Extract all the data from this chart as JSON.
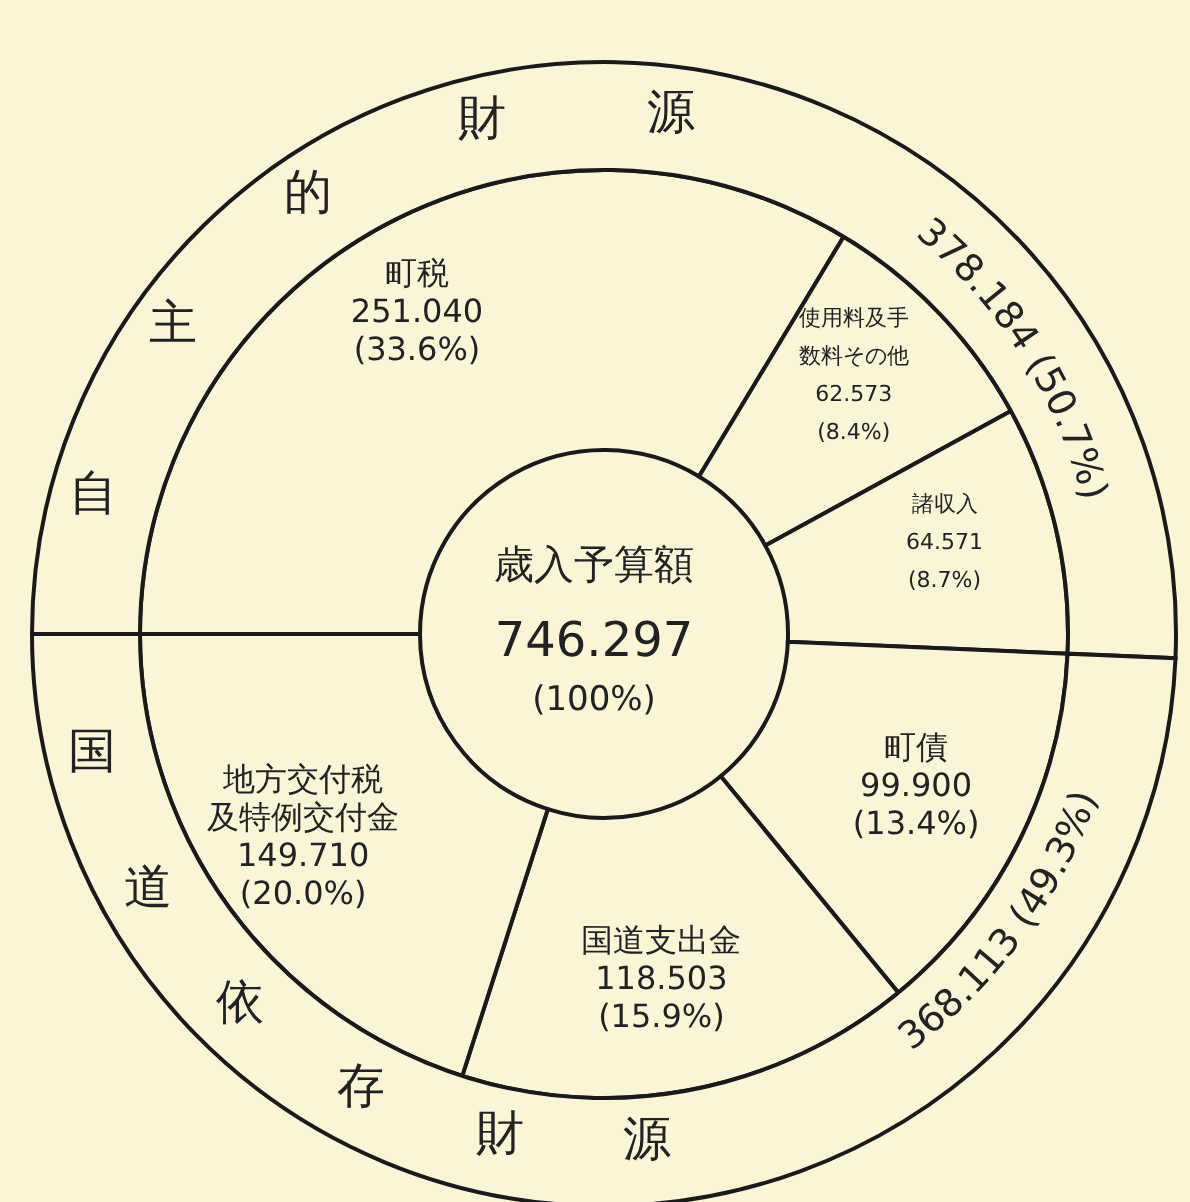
{
  "chart_data": [
    {
      "type": "donut",
      "title": "歳入予算額",
      "annotations": [
        "746.297",
        "(100%)"
      ],
      "categories": [
        "町税",
        "使用料及手数料その他",
        "諸収入",
        "町債",
        "国道支出金",
        "地方交付税及特例交付金"
      ],
      "values": [
        251.04,
        62.573,
        64.571,
        99.9,
        118.503,
        149.71
      ],
      "value_labels": [
        "251.040 (33.6%)",
        "62.573 (8.4%)",
        "64.571 (8.7%)",
        "99.900 (13.4%)",
        "118.503 (15.9%)",
        "149.710 (20.0%)"
      ],
      "colors": [
        "#fbf5d8",
        "#fbf5d8",
        "#fbf5d8",
        "#fbf5d8",
        "#fbf5d8",
        "#fbf5d8"
      ]
    },
    {
      "type": "donut",
      "categories": [
        "自主的財源",
        "国道依存財源"
      ],
      "values": [
        378.184,
        368.113
      ],
      "value_labels": [
        "378.184 (50.7%)",
        "368.113 (49.3%)"
      ],
      "colors": [
        "#fbf5d8",
        "#fbf5d8"
      ]
    }
  ]
}
